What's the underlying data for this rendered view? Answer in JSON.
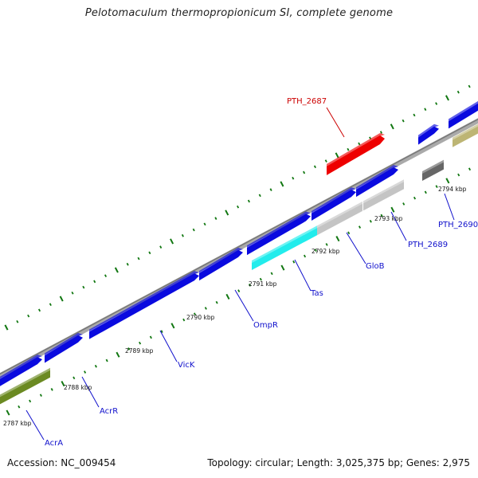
{
  "title": "Pelotomaculum thermopropionicum SI, complete genome",
  "footer": {
    "accession": "Accession: NC_009454",
    "summary": "Topology: circular; Length: 3,025,375 bp; Genes: 2,975"
  },
  "colors": {
    "blue_gene": "#0a0adf",
    "red_gene": "#ee0000",
    "cyan_gene": "#22ecec",
    "light_gray_gene": "#c4c4c4",
    "dark_gray_gene": "#666666",
    "olive_gene": "#6b8a22",
    "khaki_gene": "#bdb574",
    "backbone": "#8c8c8c",
    "ticks": "#117711",
    "label_blue": "#1010cc",
    "label_red": "#cc0000"
  },
  "scale_labels": [
    "2787 kbp",
    "2788 kbp",
    "2789 kbp",
    "2790 kbp",
    "2791 kbp",
    "2792 kbp",
    "2793 kbp",
    "2794 kbp"
  ],
  "gene_labels": [
    {
      "name": "PTH_2687",
      "color": "red"
    },
    {
      "name": "PTH_2690",
      "color": "blue"
    },
    {
      "name": "PTH_2689",
      "color": "blue"
    },
    {
      "name": "GloB",
      "color": "blue"
    },
    {
      "name": "Tas",
      "color": "blue"
    },
    {
      "name": "OmpR",
      "color": "blue"
    },
    {
      "name": "VicK",
      "color": "blue"
    },
    {
      "name": "AcrR",
      "color": "blue"
    },
    {
      "name": "AcrA",
      "color": "blue"
    }
  ]
}
